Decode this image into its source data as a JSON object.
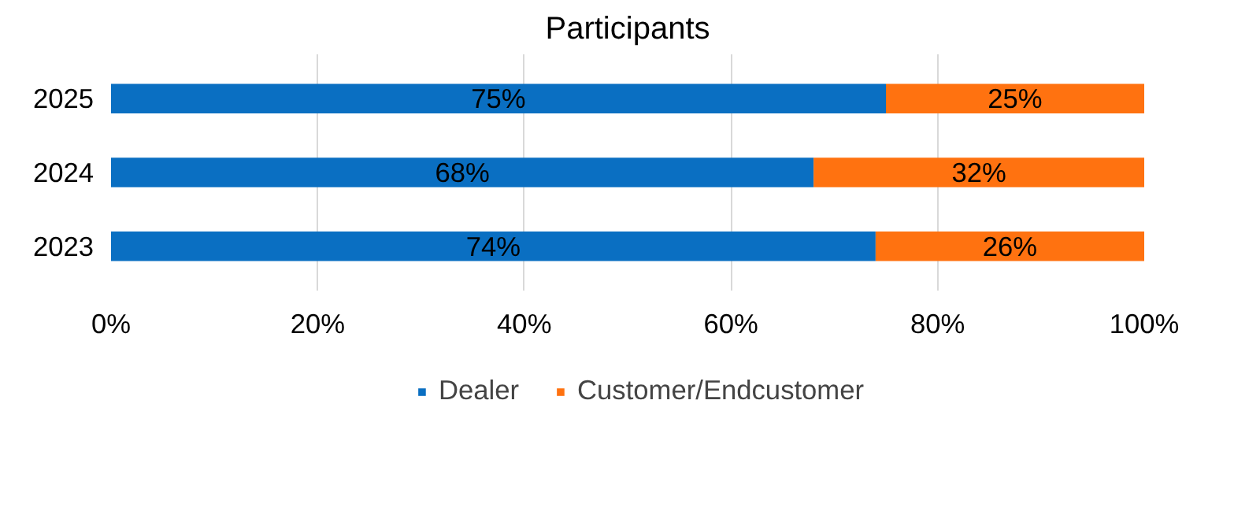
{
  "chart_data": {
    "type": "bar",
    "orientation": "horizontal",
    "stacked": true,
    "title": "Participants",
    "categories": [
      "2025",
      "2024",
      "2023"
    ],
    "series": [
      {
        "name": "Dealer",
        "color": "#0a6fc2",
        "values": [
          75,
          68,
          74
        ],
        "value_labels": [
          "75%",
          "68%",
          "74%"
        ]
      },
      {
        "name": "Customer/Endcustomer",
        "color": "#ff7210",
        "values": [
          25,
          32,
          26
        ],
        "value_labels": [
          "25%",
          "32%",
          "26%"
        ]
      }
    ],
    "xlim": [
      0,
      100
    ],
    "xticks": [
      {
        "value": 0,
        "label": "0%"
      },
      {
        "value": 20,
        "label": "20%"
      },
      {
        "value": 40,
        "label": "40%"
      },
      {
        "value": 60,
        "label": "60%"
      },
      {
        "value": 80,
        "label": "80%"
      },
      {
        "value": 100,
        "label": "100%"
      }
    ],
    "grid": "x",
    "legend": "bottom"
  }
}
